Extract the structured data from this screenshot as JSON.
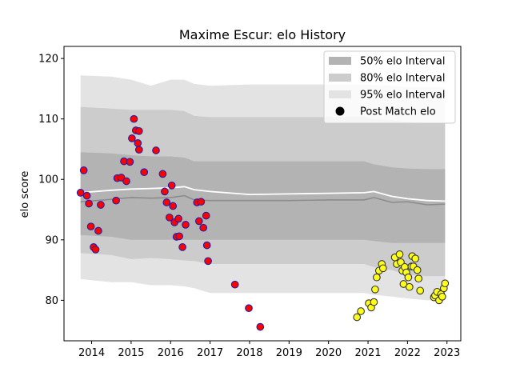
{
  "chart_data": {
    "type": "scatter",
    "title": "Maxime Escur: elo History",
    "xlabel": "",
    "ylabel": "elo score",
    "xlim": [
      2013.3,
      2023.35
    ],
    "ylim": [
      73.3,
      122.0
    ],
    "x_ticks": [
      2014,
      2015,
      2016,
      2017,
      2018,
      2019,
      2020,
      2021,
      2022,
      2023
    ],
    "y_ticks": [
      80,
      90,
      100,
      110,
      120
    ],
    "grid": false,
    "legend_position": "top-right",
    "colors": {
      "band_50": "#b3b3b3",
      "band_80": "#cccccc",
      "band_95": "#e3e3e3",
      "median_line": "#8c8c8c",
      "mean_line": "#ffffff",
      "series_a_fill": "#ff0000",
      "series_a_edge": "#1f1fa8",
      "series_b_fill": "#ffff1a",
      "series_b_edge": "#333333"
    },
    "legend": [
      {
        "label": "50% elo Interval",
        "kind": "band_50"
      },
      {
        "label": "80% elo Interval",
        "kind": "band_80"
      },
      {
        "label": "95% elo Interval",
        "kind": "band_95"
      },
      {
        "label": "Post Match elo",
        "kind": "marker"
      }
    ],
    "intervals": {
      "x": [
        2013.72,
        2014.5,
        2015.0,
        2015.5,
        2016.0,
        2016.35,
        2016.6,
        2017.0,
        2018.0,
        2019.0,
        2020.0,
        2020.9,
        2021.15,
        2021.6,
        2022.0,
        2022.5,
        2022.95
      ],
      "band95_hi": [
        117.2,
        117.0,
        116.5,
        115.5,
        116.5,
        116.5,
        115.8,
        115.5,
        115.7,
        115.7,
        115.7,
        115.7,
        115.6,
        115.5,
        115.3,
        115.3,
        115.3
      ],
      "band95_lo": [
        83.5,
        83.0,
        83.0,
        82.5,
        82.5,
        82.3,
        82.0,
        81.2,
        81.2,
        81.2,
        81.2,
        81.2,
        80.9,
        80.6,
        80.3,
        80.0,
        80.0
      ],
      "band80_hi": [
        112.0,
        111.7,
        111.5,
        111.5,
        111.5,
        111.3,
        110.5,
        110.3,
        110.3,
        110.3,
        110.3,
        110.3,
        110.0,
        109.8,
        109.5,
        109.3,
        109.3
      ],
      "band80_lo": [
        87.8,
        87.5,
        86.8,
        87.0,
        86.8,
        86.6,
        86.5,
        86.0,
        86.0,
        86.0,
        86.0,
        86.0,
        85.5,
        85.0,
        84.2,
        84.0,
        84.0
      ],
      "band50_hi": [
        104.5,
        104.3,
        104.0,
        103.8,
        103.8,
        103.6,
        103.0,
        103.0,
        103.0,
        103.0,
        103.0,
        103.0,
        102.5,
        102.0,
        101.8,
        101.7,
        101.7
      ],
      "band50_lo": [
        90.8,
        90.5,
        90.0,
        90.0,
        90.0,
        90.0,
        90.0,
        90.0,
        90.0,
        90.0,
        90.0,
        90.0,
        89.8,
        89.5,
        89.5,
        89.5,
        89.5
      ],
      "median": [
        96.3,
        96.7,
        97.0,
        96.9,
        97.0,
        97.3,
        96.6,
        96.5,
        96.5,
        96.5,
        96.6,
        96.6,
        97.0,
        96.2,
        96.3,
        95.8,
        95.9
      ],
      "mean": [
        97.8,
        98.2,
        98.4,
        98.5,
        98.6,
        98.8,
        98.3,
        98.0,
        97.5,
        97.6,
        97.7,
        97.8,
        98.0,
        97.2,
        96.8,
        96.5,
        96.4
      ]
    },
    "series": [
      {
        "key": "series_a",
        "x": [
          2013.72,
          2013.8,
          2013.88,
          2013.93,
          2013.98,
          2014.05,
          2014.1,
          2014.17,
          2014.23,
          2014.62,
          2014.65,
          2014.75,
          2014.82,
          2014.88,
          2014.97,
          2015.02,
          2015.07,
          2015.12,
          2015.17,
          2015.2,
          2015.2,
          2015.33,
          2015.63,
          2015.8,
          2015.85,
          2015.9,
          2015.97,
          2016.03,
          2016.06,
          2016.1,
          2016.15,
          2016.2,
          2016.22,
          2016.3,
          2016.38,
          2016.67,
          2016.72,
          2016.77,
          2016.83,
          2016.9,
          2016.92,
          2016.95,
          2017.63,
          2017.98,
          2018.27
        ],
        "y": [
          97.8,
          101.5,
          97.3,
          96.0,
          92.2,
          88.8,
          88.4,
          91.5,
          95.8,
          96.5,
          100.2,
          100.3,
          103.0,
          99.7,
          102.9,
          106.8,
          110.0,
          108.1,
          106.0,
          104.9,
          108.0,
          101.2,
          104.8,
          100.9,
          98.0,
          96.2,
          93.7,
          99.0,
          95.6,
          92.9,
          90.5,
          93.5,
          90.6,
          88.8,
          92.5,
          96.2,
          93.1,
          96.3,
          92.0,
          94.0,
          89.1,
          86.5,
          82.6,
          78.7,
          75.6
        ]
      },
      {
        "key": "series_b",
        "x": [
          2020.72,
          2020.82,
          2021.02,
          2021.08,
          2021.15,
          2021.18,
          2021.22,
          2021.28,
          2021.35,
          2021.38,
          2021.68,
          2021.73,
          2021.8,
          2021.83,
          2021.87,
          2021.9,
          2021.93,
          2021.97,
          2022.02,
          2022.05,
          2022.1,
          2022.12,
          2022.15,
          2022.2,
          2022.25,
          2022.28,
          2022.32,
          2022.67,
          2022.7,
          2022.75,
          2022.8,
          2022.85,
          2022.88,
          2022.92,
          2022.95
        ],
        "y": [
          77.2,
          78.2,
          79.5,
          78.8,
          79.7,
          81.8,
          83.8,
          84.9,
          86.0,
          85.3,
          87.1,
          86.0,
          87.6,
          86.3,
          84.9,
          82.7,
          85.5,
          84.6,
          83.8,
          82.2,
          85.6,
          87.3,
          85.6,
          86.9,
          85.0,
          83.6,
          81.6,
          80.5,
          80.8,
          81.4,
          80.0,
          81.0,
          80.6,
          82.0,
          82.8
        ]
      }
    ]
  }
}
